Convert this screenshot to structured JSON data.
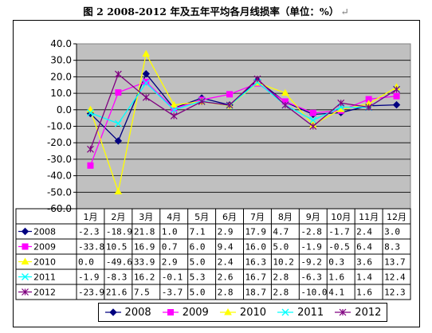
{
  "title": {
    "text": "图 2   2008-2012 年及五年平均各月线损率（单位：%）",
    "mark": "↵"
  },
  "chart_data": {
    "type": "line",
    "categories": [
      "1月",
      "2月",
      "3月",
      "4月",
      "5月",
      "6月",
      "7月",
      "8月",
      "9月",
      "10月",
      "11月",
      "12月"
    ],
    "ylim": [
      -60,
      40
    ],
    "yticks": [
      "40.0",
      "30.0",
      "20.0",
      "10.0",
      "0.0",
      "-10.0",
      "-20.0",
      "-30.0",
      "-40.0",
      "-50.0",
      "-60.0"
    ],
    "grid": true,
    "legend_position": "bottom",
    "plot_background": "#c0c0c0",
    "series": [
      {
        "name": "2008",
        "color": "#000080",
        "marker": "diamond",
        "values": [
          -2.3,
          -18.9,
          21.8,
          1.0,
          7.1,
          2.9,
          17.9,
          4.7,
          -2.8,
          -1.7,
          2.4,
          3.0
        ],
        "labels": [
          "-2.3",
          "-18.9",
          "21.8",
          "1.0",
          "7.1",
          "2.9",
          "17.9",
          "4.7",
          "-2.8",
          "-1.7",
          "2.4",
          "3.0"
        ]
      },
      {
        "name": "2009",
        "color": "#ff00ff",
        "marker": "square",
        "values": [
          -33.8,
          10.5,
          16.9,
          0.7,
          6.0,
          9.4,
          16.0,
          5.0,
          -1.9,
          -0.5,
          6.4,
          8.3
        ],
        "labels": [
          "-33.8",
          "10.5",
          "16.9",
          "0.7",
          "6.0",
          "9.4",
          "16.0",
          "5.0",
          "-1.9",
          "-0.5",
          "6.4",
          "8.3"
        ]
      },
      {
        "name": "2010",
        "color": "#ffff00",
        "marker": "triangle",
        "values": [
          0.0,
          -49.6,
          33.9,
          2.9,
          5.0,
          2.4,
          16.3,
          10.2,
          -9.2,
          0.3,
          3.6,
          13.7
        ],
        "labels": [
          "0.0",
          "-49.6",
          "33.9",
          "2.9",
          "5.0",
          "2.4",
          "16.3",
          "10.2",
          "-9.2",
          "0.3",
          "3.6",
          "13.7"
        ]
      },
      {
        "name": "2011",
        "color": "#00ffff",
        "marker": "x",
        "values": [
          -1.9,
          -8.3,
          16.2,
          -0.1,
          5.3,
          2.6,
          16.7,
          2.8,
          -6.3,
          1.6,
          1.4,
          12.4
        ],
        "labels": [
          "-1.9",
          "-8.3",
          "16.2",
          "-0.1",
          "5.3",
          "2.6",
          "16.7",
          "2.8",
          "-6.3",
          "1.6",
          "1.4",
          "12.4"
        ]
      },
      {
        "name": "2012",
        "color": "#800080",
        "marker": "star",
        "values": [
          -23.9,
          21.6,
          7.5,
          -3.7,
          5.0,
          2.8,
          18.7,
          2.8,
          -10.0,
          4.1,
          1.6,
          12.3
        ],
        "labels": [
          "-23.9",
          "21.6",
          "7.5",
          "-3.7",
          "5.0",
          "2.8",
          "18.7",
          "2.8",
          "-10.0",
          "4.1",
          "1.6",
          "12.3"
        ]
      }
    ]
  }
}
